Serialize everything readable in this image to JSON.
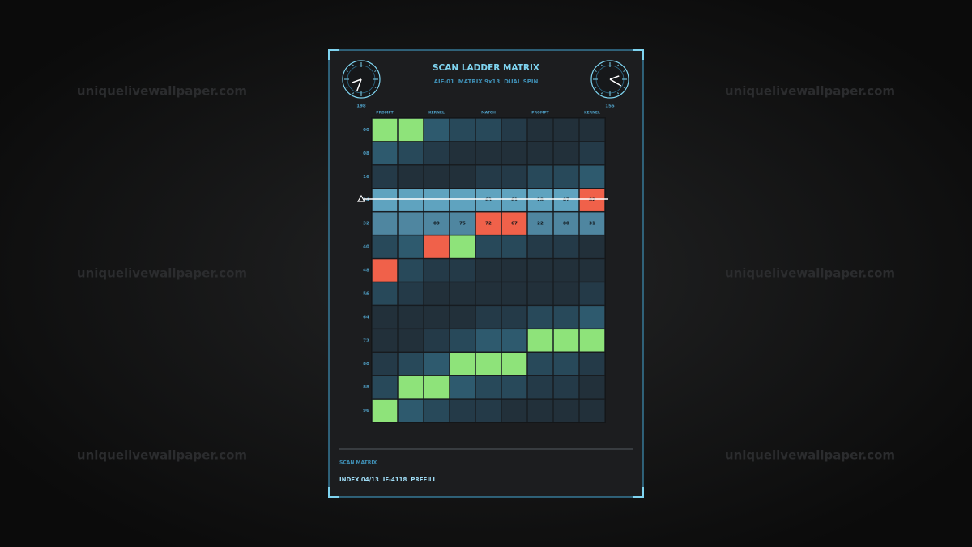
{
  "watermark": "uniquelivewallpaper.com",
  "header": {
    "title": "SCAN LADDER MATRIX",
    "subtitle": "AIF-01  MATRIX 9x13  DUAL SPIN",
    "dial_left": "198",
    "dial_right": "155"
  },
  "grid": {
    "columns": [
      "PROMPT",
      null,
      "KERNEL",
      null,
      "MATCH",
      null,
      "PROMPT",
      null,
      "KERNEL"
    ],
    "rows": [
      {
        "label": "00",
        "colors": [
          "#8ee37a",
          "#8ee37a",
          "#2e5a6e",
          "#28495a",
          "#28495a",
          "#243a48",
          "#22303a",
          "#22303a",
          "#22303a"
        ],
        "values": [
          null,
          null,
          null,
          null,
          null,
          null,
          null,
          null,
          null
        ]
      },
      {
        "label": "08",
        "colors": [
          "#2e5a6e",
          "#28495a",
          "#243a48",
          "#22303a",
          "#22303a",
          "#22303a",
          "#22303a",
          "#22303a",
          "#243a48"
        ],
        "values": [
          null,
          null,
          null,
          null,
          null,
          null,
          null,
          null,
          null
        ]
      },
      {
        "label": "16",
        "colors": [
          "#243a48",
          "#22303a",
          "#22303a",
          "#22303a",
          "#243a48",
          "#243a48",
          "#28495a",
          "#28495a",
          "#2e5a6e"
        ],
        "values": [
          null,
          null,
          null,
          null,
          null,
          null,
          null,
          null,
          null
        ]
      },
      {
        "label": "24",
        "colors": [
          "#5fa3bf",
          "#5fa3bf",
          "#5fa3bf",
          "#5fa3bf",
          "#5fa3bf",
          "#5fa3bf",
          "#5fa3bf",
          "#5fa3bf",
          "#f0614a"
        ],
        "values": [
          null,
          null,
          null,
          null,
          "63",
          "61",
          "28",
          "07",
          "82"
        ]
      },
      {
        "label": "32",
        "colors": [
          "#4f86a0",
          "#4f86a0",
          "#4f86a0",
          "#4f86a0",
          "#f0614a",
          "#f0614a",
          "#4f86a0",
          "#4f86a0",
          "#4f86a0"
        ],
        "values": [
          null,
          null,
          "09",
          "75",
          "72",
          "67",
          "22",
          "80",
          "31"
        ]
      },
      {
        "label": "40",
        "colors": [
          "#28495a",
          "#2e5a6e",
          "#f0614a",
          "#8ee37a",
          "#28495a",
          "#28495a",
          "#243a48",
          "#243a48",
          "#22303a"
        ],
        "values": [
          null,
          null,
          null,
          null,
          null,
          null,
          null,
          null,
          null
        ]
      },
      {
        "label": "48",
        "colors": [
          "#f0614a",
          "#28495a",
          "#243a48",
          "#243a48",
          "#22303a",
          "#22303a",
          "#22303a",
          "#22303a",
          "#22303a"
        ],
        "values": [
          null,
          null,
          null,
          null,
          null,
          null,
          null,
          null,
          null
        ]
      },
      {
        "label": "56",
        "colors": [
          "#28495a",
          "#243a48",
          "#22303a",
          "#22303a",
          "#22303a",
          "#22303a",
          "#22303a",
          "#22303a",
          "#243a48"
        ],
        "values": [
          null,
          null,
          null,
          null,
          null,
          null,
          null,
          null,
          null
        ]
      },
      {
        "label": "64",
        "colors": [
          "#22303a",
          "#22303a",
          "#22303a",
          "#22303a",
          "#243a48",
          "#243a48",
          "#28495a",
          "#28495a",
          "#2e5a6e"
        ],
        "values": [
          null,
          null,
          null,
          null,
          null,
          null,
          null,
          null,
          null
        ]
      },
      {
        "label": "72",
        "colors": [
          "#22303a",
          "#22303a",
          "#243a48",
          "#28495a",
          "#2e5a6e",
          "#2e5a6e",
          "#8ee37a",
          "#8ee37a",
          "#8ee37a"
        ],
        "values": [
          null,
          null,
          null,
          null,
          null,
          null,
          null,
          null,
          null
        ]
      },
      {
        "label": "80",
        "colors": [
          "#243a48",
          "#28495a",
          "#2e5a6e",
          "#8ee37a",
          "#8ee37a",
          "#8ee37a",
          "#28495a",
          "#28495a",
          "#243a48"
        ],
        "values": [
          null,
          null,
          null,
          null,
          null,
          null,
          null,
          null,
          null
        ]
      },
      {
        "label": "88",
        "colors": [
          "#28495a",
          "#8ee37a",
          "#8ee37a",
          "#2e5a6e",
          "#28495a",
          "#28495a",
          "#243a48",
          "#243a48",
          "#22303a"
        ],
        "values": [
          null,
          null,
          null,
          null,
          null,
          null,
          null,
          null,
          null
        ]
      },
      {
        "label": "96",
        "colors": [
          "#8ee37a",
          "#2e5a6e",
          "#28495a",
          "#243a48",
          "#243a48",
          "#22303a",
          "#22303a",
          "#22303a",
          "#22303a"
        ],
        "values": [
          null,
          null,
          null,
          null,
          null,
          null,
          null,
          null,
          null
        ]
      }
    ]
  },
  "footer": {
    "label": "SCAN MATRIX",
    "status": "INDEX 04/13  IF-4118  PREFILL"
  }
}
